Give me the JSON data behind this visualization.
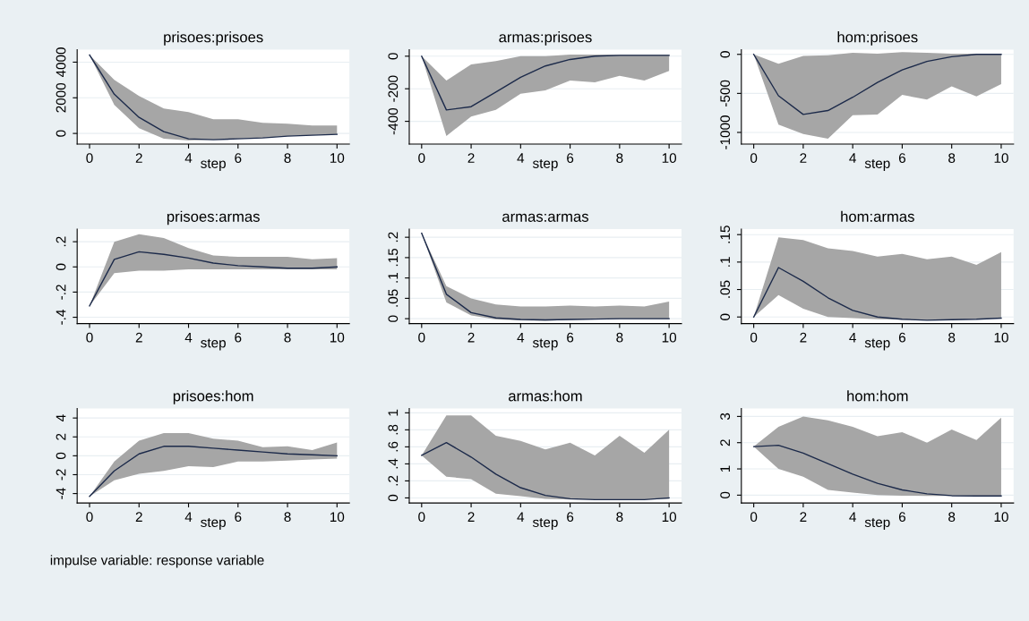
{
  "chart_data": [
    {
      "type": "line",
      "title": "prisoes:prisoes",
      "xlabel": "step",
      "x": [
        0,
        1,
        2,
        3,
        4,
        5,
        6,
        7,
        8,
        9,
        10
      ],
      "xlim": [
        -0.5,
        10.5
      ],
      "xticks": [
        0,
        2,
        4,
        6,
        8,
        10
      ],
      "ylim": [
        -600,
        4700
      ],
      "yticks": [
        0,
        2000,
        4000
      ],
      "grid": "y",
      "series": [
        {
          "color": "#1c2a4a",
          "values": [
            4400,
            2200,
            900,
            100,
            -300,
            -350,
            -300,
            -250,
            -150,
            -100,
            -50
          ],
          "lower": [
            4400,
            1600,
            300,
            -300,
            -400,
            -350,
            -300,
            -250,
            -150,
            -100,
            -50
          ],
          "upper": [
            4400,
            3000,
            2100,
            1400,
            1200,
            800,
            800,
            600,
            550,
            450,
            450
          ]
        }
      ]
    },
    {
      "type": "line",
      "title": "armas:prisoes",
      "xlabel": "step",
      "x": [
        0,
        1,
        2,
        3,
        4,
        5,
        6,
        7,
        8,
        9,
        10
      ],
      "xlim": [
        -0.5,
        10.5
      ],
      "xticks": [
        0,
        2,
        4,
        6,
        8,
        10
      ],
      "ylim": [
        -540,
        40
      ],
      "yticks": [
        -400,
        -200,
        0
      ],
      "grid": "y",
      "series": [
        {
          "color": "#1c2a4a",
          "values": [
            0,
            -330,
            -310,
            -220,
            -130,
            -60,
            -20,
            0,
            5,
            5,
            5
          ],
          "lower": [
            0,
            -490,
            -370,
            -330,
            -230,
            -210,
            -150,
            -160,
            -120,
            -150,
            -90
          ],
          "upper": [
            0,
            -150,
            -50,
            -30,
            0,
            0,
            10,
            10,
            10,
            10,
            10
          ]
        }
      ]
    },
    {
      "type": "line",
      "title": "hom:prisoes",
      "xlabel": "step",
      "x": [
        0,
        1,
        2,
        3,
        4,
        5,
        6,
        7,
        8,
        9,
        10
      ],
      "xlim": [
        -0.5,
        10.5
      ],
      "xticks": [
        0,
        2,
        4,
        6,
        8,
        10
      ],
      "ylim": [
        -1150,
        60
      ],
      "yticks": [
        -1000,
        -500,
        0
      ],
      "grid": "y",
      "series": [
        {
          "color": "#1c2a4a",
          "values": [
            0,
            -530,
            -770,
            -720,
            -550,
            -360,
            -200,
            -90,
            -30,
            0,
            0
          ],
          "lower": [
            0,
            -900,
            -1020,
            -1080,
            -780,
            -770,
            -520,
            -580,
            -410,
            -540,
            -380
          ],
          "upper": [
            0,
            -120,
            -20,
            -10,
            20,
            10,
            30,
            20,
            10,
            10,
            10
          ]
        }
      ]
    },
    {
      "type": "line",
      "title": "prisoes:armas",
      "xlabel": "step",
      "x": [
        0,
        1,
        2,
        3,
        4,
        5,
        6,
        7,
        8,
        9,
        10
      ],
      "xlim": [
        -0.5,
        10.5
      ],
      "xticks": [
        0,
        2,
        4,
        6,
        8,
        10
      ],
      "ylim": [
        -0.45,
        0.3
      ],
      "yticks": [
        {
          "value": -0.4,
          "label": "-.4"
        },
        {
          "value": -0.2,
          "label": "-.2"
        },
        0,
        {
          "value": 0.2,
          "label": ".2"
        }
      ],
      "grid": "y",
      "series": [
        {
          "color": "#1c2a4a",
          "values": [
            -0.31,
            0.06,
            0.12,
            0.1,
            0.07,
            0.03,
            0.01,
            0,
            -0.01,
            -0.01,
            0
          ],
          "lower": [
            -0.31,
            -0.05,
            -0.03,
            -0.03,
            -0.02,
            -0.02,
            -0.02,
            -0.02,
            -0.02,
            -0.02,
            -0.02
          ],
          "upper": [
            -0.31,
            0.2,
            0.26,
            0.23,
            0.15,
            0.09,
            0.08,
            0.08,
            0.08,
            0.06,
            0.07
          ]
        }
      ]
    },
    {
      "type": "line",
      "title": "armas:armas",
      "xlabel": "step",
      "x": [
        0,
        1,
        2,
        3,
        4,
        5,
        6,
        7,
        8,
        9,
        10
      ],
      "xlim": [
        -0.5,
        10.5
      ],
      "xticks": [
        0,
        2,
        4,
        6,
        8,
        10
      ],
      "ylim": [
        -0.012,
        0.22
      ],
      "yticks": [
        0,
        {
          "value": 0.05,
          "label": ".05"
        },
        {
          "value": 0.1,
          "label": ".1"
        },
        {
          "value": 0.15,
          "label": ".15"
        },
        {
          "value": 0.2,
          "label": ".2"
        }
      ],
      "grid": "y",
      "series": [
        {
          "color": "#1c2a4a",
          "values": [
            0.21,
            0.06,
            0.015,
            0.002,
            -0.002,
            -0.003,
            -0.002,
            -0.001,
            0,
            0,
            0
          ],
          "lower": [
            0.21,
            0.04,
            0.008,
            -0.002,
            -0.004,
            -0.005,
            -0.003,
            -0.002,
            -0.001,
            -0.001,
            -0.001
          ],
          "upper": [
            0.21,
            0.08,
            0.05,
            0.035,
            0.03,
            0.03,
            0.032,
            0.03,
            0.032,
            0.03,
            0.042
          ]
        }
      ]
    },
    {
      "type": "line",
      "title": "hom:armas",
      "xlabel": "step",
      "x": [
        0,
        1,
        2,
        3,
        4,
        5,
        6,
        7,
        8,
        9,
        10
      ],
      "xlim": [
        -0.5,
        10.5
      ],
      "xticks": [
        0,
        2,
        4,
        6,
        8,
        10
      ],
      "ylim": [
        -0.012,
        0.16
      ],
      "yticks": [
        0,
        {
          "value": 0.05,
          "label": ".05"
        },
        {
          "value": 0.1,
          "label": ".1"
        },
        {
          "value": 0.15,
          "label": ".15"
        }
      ],
      "grid": "y",
      "series": [
        {
          "color": "#1c2a4a",
          "values": [
            0,
            0.09,
            0.065,
            0.035,
            0.012,
            0,
            -0.004,
            -0.006,
            -0.005,
            -0.004,
            -0.002
          ],
          "lower": [
            0,
            0.04,
            0.015,
            0,
            -0.002,
            -0.004,
            -0.005,
            -0.006,
            -0.005,
            -0.004,
            -0.002
          ],
          "upper": [
            0,
            0.145,
            0.14,
            0.125,
            0.12,
            0.11,
            0.115,
            0.105,
            0.11,
            0.095,
            0.118
          ]
        }
      ]
    },
    {
      "type": "line",
      "title": "prisoes:hom",
      "xlabel": "step",
      "x": [
        0,
        1,
        2,
        3,
        4,
        5,
        6,
        7,
        8,
        9,
        10
      ],
      "xlim": [
        -0.5,
        10.5
      ],
      "xticks": [
        0,
        2,
        4,
        6,
        8,
        10
      ],
      "ylim": [
        -5,
        5
      ],
      "yticks": [
        -4,
        -2,
        0,
        2,
        4
      ],
      "grid": "y",
      "annotations": [
        "impulse variable: response variable"
      ],
      "series": [
        {
          "color": "#1c2a4a",
          "values": [
            -4.3,
            -1.6,
            0.2,
            1,
            1,
            0.8,
            0.6,
            0.4,
            0.2,
            0.1,
            0
          ],
          "lower": [
            -4.3,
            -2.6,
            -1.9,
            -1.6,
            -1.1,
            -1.2,
            -0.6,
            -0.6,
            -0.5,
            -0.4,
            -0.3
          ],
          "upper": [
            -4.3,
            -0.6,
            1.6,
            2.4,
            2.4,
            1.8,
            1.6,
            0.9,
            1,
            0.6,
            1.4
          ]
        }
      ]
    },
    {
      "type": "line",
      "title": "armas:hom",
      "xlabel": "step",
      "x": [
        0,
        1,
        2,
        3,
        4,
        5,
        6,
        7,
        8,
        9,
        10
      ],
      "xlim": [
        -0.5,
        10.5
      ],
      "xticks": [
        0,
        2,
        4,
        6,
        8,
        10
      ],
      "ylim": [
        -0.06,
        1.05
      ],
      "yticks": [
        0,
        {
          "value": 0.2,
          "label": ".2"
        },
        {
          "value": 0.4,
          "label": ".4"
        },
        {
          "value": 0.6,
          "label": ".6"
        },
        {
          "value": 0.8,
          "label": ".8"
        },
        1
      ],
      "grid": "y",
      "series": [
        {
          "color": "#1c2a4a",
          "values": [
            0.5,
            0.65,
            0.48,
            0.28,
            0.12,
            0.03,
            -0.01,
            -0.02,
            -0.02,
            -0.02,
            0
          ],
          "lower": [
            0.5,
            0.25,
            0.22,
            0.05,
            0.02,
            -0.01,
            -0.02,
            -0.02,
            -0.02,
            -0.02,
            -0.01
          ],
          "upper": [
            0.5,
            0.97,
            0.97,
            0.73,
            0.67,
            0.57,
            0.65,
            0.5,
            0.73,
            0.53,
            0.8
          ]
        }
      ]
    },
    {
      "type": "line",
      "title": "hom:hom",
      "xlabel": "step",
      "x": [
        0,
        1,
        2,
        3,
        4,
        5,
        6,
        7,
        8,
        9,
        10
      ],
      "xlim": [
        -0.5,
        10.5
      ],
      "xticks": [
        0,
        2,
        4,
        6,
        8,
        10
      ],
      "ylim": [
        -0.3,
        3.3
      ],
      "yticks": [
        0,
        1,
        2,
        3
      ],
      "grid": "y",
      "series": [
        {
          "color": "#1c2a4a",
          "values": [
            1.85,
            1.9,
            1.6,
            1.2,
            0.8,
            0.45,
            0.2,
            0.05,
            -0.02,
            -0.03,
            -0.03
          ],
          "lower": [
            1.85,
            1,
            0.7,
            0.2,
            0.1,
            0,
            -0.02,
            -0.03,
            -0.03,
            -0.03,
            -0.03
          ],
          "upper": [
            1.85,
            2.6,
            3,
            2.85,
            2.6,
            2.25,
            2.4,
            2,
            2.5,
            2.1,
            2.95
          ]
        }
      ]
    }
  ]
}
